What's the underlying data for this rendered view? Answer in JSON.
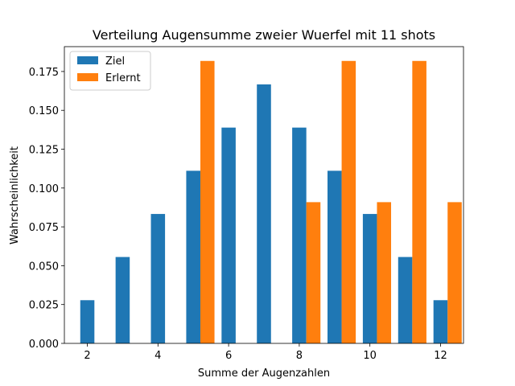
{
  "chart_data": {
    "type": "bar",
    "title": "Verteilung Augensumme zweier Wuerfel mit 11 shots",
    "xlabel": "Summe der Augenzahlen",
    "ylabel": "Wahrscheinlichkeit",
    "xlim": [
      1.35,
      12.65
    ],
    "ylim": [
      0,
      0.191
    ],
    "xticks": [
      2,
      4,
      6,
      8,
      10,
      12
    ],
    "xtick_labels": [
      "2",
      "4",
      "6",
      "8",
      "10",
      "12"
    ],
    "yticks": [
      0,
      0.025,
      0.05,
      0.075,
      0.1,
      0.125,
      0.15,
      0.175
    ],
    "ytick_labels": [
      "0.000",
      "0.025",
      "0.050",
      "0.075",
      "0.100",
      "0.125",
      "0.150",
      "0.175"
    ],
    "x": [
      2,
      3,
      4,
      5,
      6,
      7,
      8,
      9,
      10,
      11,
      12
    ],
    "bar_width": 0.4,
    "grid": false,
    "legend_position": "top-left",
    "series": [
      {
        "name": "Ziel",
        "color": "#1f77b4",
        "offset": 0,
        "values": [
          0.0278,
          0.0556,
          0.0833,
          0.1111,
          0.1389,
          0.1667,
          0.1389,
          0.1111,
          0.0833,
          0.0556,
          0.0278
        ]
      },
      {
        "name": "Erlernt",
        "color": "#ff7f0e",
        "offset": 0.4,
        "values": [
          0,
          0,
          0,
          0.1818,
          0,
          0,
          0.0909,
          0.1818,
          0.0909,
          0.1818,
          0.0909
        ]
      }
    ]
  }
}
